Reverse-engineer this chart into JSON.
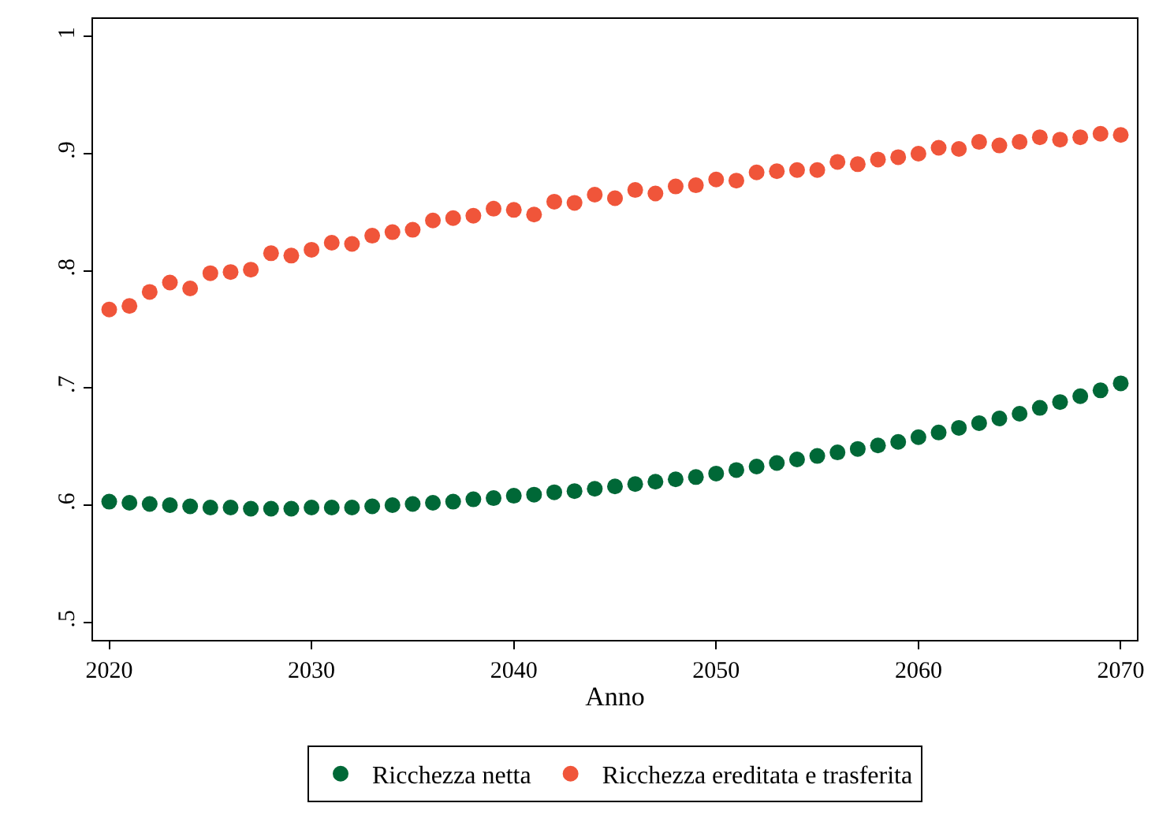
{
  "chart_data": {
    "type": "scatter",
    "xlabel": "Anno",
    "marker": "circle",
    "legend": "bottom",
    "x": [
      2020,
      2021,
      2022,
      2023,
      2024,
      2025,
      2026,
      2027,
      2028,
      2029,
      2030,
      2031,
      2032,
      2033,
      2034,
      2035,
      2036,
      2037,
      2038,
      2039,
      2040,
      2041,
      2042,
      2043,
      2044,
      2045,
      2046,
      2047,
      2048,
      2049,
      2050,
      2051,
      2052,
      2053,
      2054,
      2055,
      2056,
      2057,
      2058,
      2059,
      2060,
      2061,
      2062,
      2063,
      2064,
      2065,
      2066,
      2067,
      2068,
      2069,
      2070
    ],
    "series": [
      {
        "name": "Ricchezza netta",
        "color": "#006837",
        "values": [
          0.603,
          0.602,
          0.601,
          0.6,
          0.599,
          0.598,
          0.598,
          0.597,
          0.597,
          0.597,
          0.598,
          0.598,
          0.598,
          0.599,
          0.6,
          0.601,
          0.602,
          0.603,
          0.605,
          0.606,
          0.608,
          0.609,
          0.611,
          0.612,
          0.614,
          0.616,
          0.618,
          0.62,
          0.622,
          0.624,
          0.627,
          0.63,
          0.633,
          0.636,
          0.639,
          0.642,
          0.645,
          0.648,
          0.651,
          0.654,
          0.658,
          0.662,
          0.666,
          0.67,
          0.674,
          0.678,
          0.683,
          0.688,
          0.693,
          0.698,
          0.704
        ]
      },
      {
        "name": "Ricchezza ereditata e trasferita",
        "color": "#f0553a",
        "values": [
          0.767,
          0.77,
          0.782,
          0.79,
          0.785,
          0.798,
          0.799,
          0.801,
          0.815,
          0.813,
          0.818,
          0.824,
          0.823,
          0.83,
          0.833,
          0.835,
          0.843,
          0.845,
          0.847,
          0.853,
          0.852,
          0.848,
          0.859,
          0.858,
          0.865,
          0.862,
          0.869,
          0.866,
          0.872,
          0.873,
          0.878,
          0.877,
          0.884,
          0.885,
          0.886,
          0.886,
          0.893,
          0.891,
          0.895,
          0.897,
          0.9,
          0.905,
          0.904,
          0.91,
          0.907,
          0.91,
          0.914,
          0.912,
          0.914,
          0.917,
          0.916
        ]
      }
    ],
    "xlim": [
      2019.2,
      2070.8
    ],
    "xticks": [
      2020,
      2030,
      2040,
      2050,
      2060,
      2070
    ],
    "ylim": [
      0.485,
      1.015
    ],
    "yticks": [
      {
        "value": 0.5,
        "label": ".5"
      },
      {
        "value": 0.6,
        "label": ".6"
      },
      {
        "value": 0.7,
        "label": ".7"
      },
      {
        "value": 0.8,
        "label": ".8"
      },
      {
        "value": 0.9,
        "label": ".9"
      },
      {
        "value": 1,
        "label": "1"
      }
    ]
  }
}
